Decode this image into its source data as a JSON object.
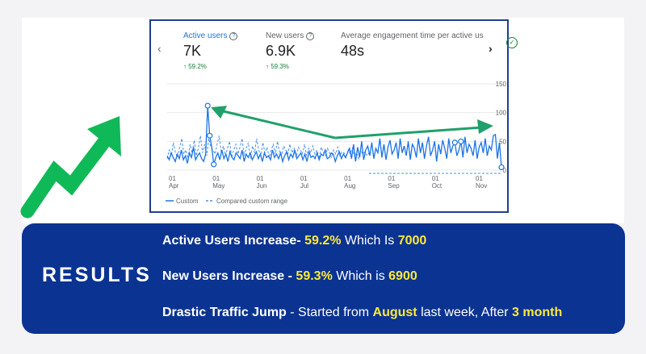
{
  "analytics": {
    "metrics": [
      {
        "label": "Active users",
        "value": "7K",
        "change": "59.2%"
      },
      {
        "label": "New users",
        "value": "6.9K",
        "change": "59.3%"
      },
      {
        "label": "Average engagement time per active us",
        "value": "48s"
      }
    ],
    "nav_prev_icon": "chevron-left-icon",
    "nav_next_icon": "chevron-right-icon",
    "status_icon": "check-circle-icon",
    "up_arrow": "↑",
    "colors": {
      "accent": "#1a73e8",
      "positive": "#188038",
      "arrow_green": "#20a06a",
      "border": "#1f3e93"
    }
  },
  "chart_data": {
    "type": "line",
    "ylim": [
      0,
      150
    ],
    "y_ticks": [
      "150",
      "100",
      "50",
      "0"
    ],
    "x_ticks": [
      {
        "day": "01",
        "month": "Apr"
      },
      {
        "day": "01",
        "month": "May"
      },
      {
        "day": "01",
        "month": "Jun"
      },
      {
        "day": "01",
        "month": "Jul"
      },
      {
        "day": "01",
        "month": "Aug"
      },
      {
        "day": "01",
        "month": "Sep"
      },
      {
        "day": "01",
        "month": "Oct"
      },
      {
        "day": "01",
        "month": "Nov"
      }
    ],
    "legend": [
      "Custom",
      "Compared custom range"
    ],
    "series": [
      {
        "name": "Custom",
        "style": "solid",
        "color": "#1a73e8",
        "values": [
          25,
          18,
          30,
          22,
          15,
          28,
          20,
          35,
          18,
          25,
          12,
          30,
          22,
          40,
          18,
          25,
          30,
          20,
          15,
          28,
          112,
          60,
          40,
          10,
          22,
          30,
          18,
          35,
          20,
          28,
          15,
          32,
          22,
          18,
          30,
          25,
          20,
          35,
          15,
          28,
          22,
          30,
          18,
          25,
          32,
          20,
          28,
          15,
          30,
          22,
          25,
          18,
          35,
          22,
          28,
          20,
          30,
          15,
          25,
          32,
          18,
          28,
          22,
          35,
          20,
          25,
          30,
          18,
          28,
          15,
          32,
          22,
          25,
          20,
          30,
          18,
          28,
          25,
          35,
          20,
          22,
          30,
          28,
          15,
          25,
          32,
          20,
          28,
          22,
          30,
          38,
          20,
          45,
          15,
          40,
          22,
          50,
          18,
          35,
          42,
          25,
          48,
          20,
          38,
          30,
          55,
          22,
          45,
          18,
          40,
          52,
          28,
          35,
          48,
          20,
          55,
          30,
          42,
          25,
          50,
          18,
          45,
          38,
          22,
          55,
          30,
          48,
          20,
          42,
          58,
          25,
          35,
          50,
          15,
          45,
          28,
          52,
          38,
          20,
          55,
          30,
          42,
          48,
          25,
          35,
          50,
          22,
          58,
          30,
          45,
          38,
          25,
          52,
          20,
          40,
          48,
          30,
          55,
          25,
          42,
          35,
          60,
          62,
          20,
          48,
          5
        ]
      },
      {
        "name": "Compared custom range",
        "style": "dashed",
        "color": "#4a8ff0",
        "values": [
          20,
          35,
          25,
          48,
          30,
          22,
          40,
          55,
          28,
          35,
          20,
          45,
          30,
          52,
          25,
          38,
          60,
          30,
          45,
          25,
          55,
          40,
          35,
          28,
          45,
          60,
          30,
          42,
          25,
          38,
          50,
          22,
          35,
          45,
          28,
          40,
          55,
          25,
          38,
          48,
          20,
          42,
          30,
          55,
          35,
          25,
          48,
          30,
          40,
          22,
          35,
          45,
          28,
          50,
          32,
          25,
          42,
          35,
          28,
          45,
          30,
          38,
          22,
          40,
          35,
          28,
          45,
          25,
          38,
          30,
          42,
          28,
          35,
          20,
          40,
          32,
          25,
          38,
          30,
          22,
          35,
          28,
          40,
          25,
          32,
          30,
          22,
          35,
          28,
          38,
          25,
          30,
          20,
          35,
          28,
          32,
          25,
          30
        ]
      }
    ]
  },
  "results": {
    "title": "RESULTS",
    "line1": {
      "lead": "Active Users Increase- ",
      "pct": "59.2%",
      "mid": "  Which Is ",
      "num": "7000"
    },
    "line2": {
      "lead": "New Users Increase - ",
      "pct": "59.3%",
      "mid": "  Which is ",
      "num": "6900"
    },
    "line3": {
      "lead": "Drastic Traffic Jump",
      "mid": " - Started from ",
      "month": "August",
      "mid2": " last week, After ",
      "span": "3 month"
    }
  }
}
